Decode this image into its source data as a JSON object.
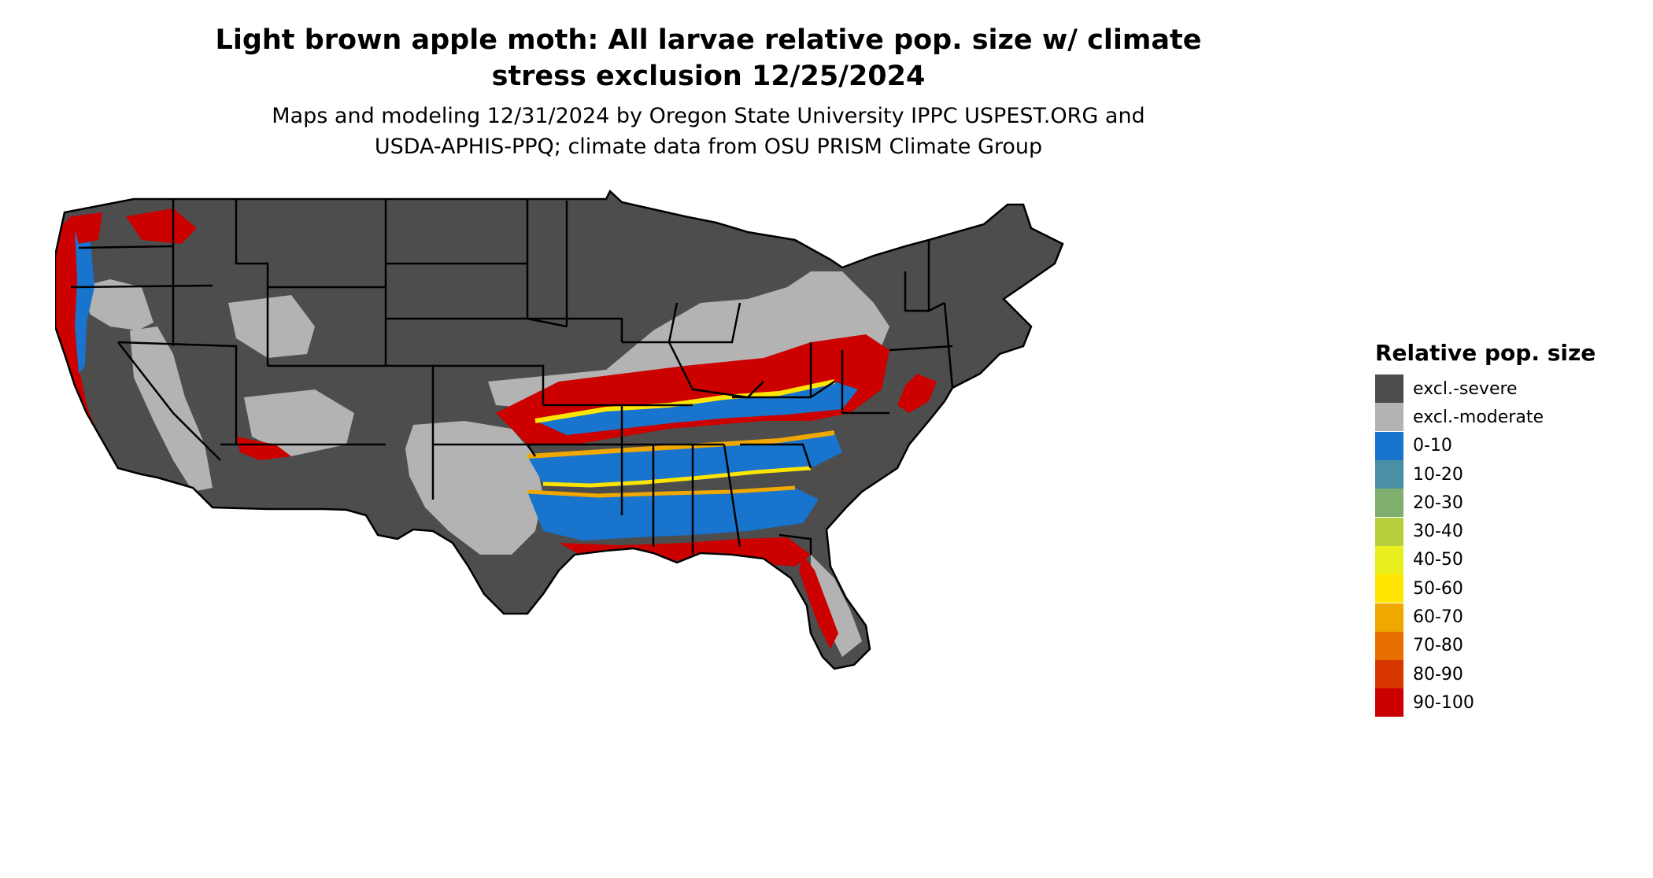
{
  "title_line1": "Light brown apple moth: All larvae relative pop. size w/ climate",
  "title_line2": "stress exclusion 12/25/2024",
  "subtitle_line1": "Maps and modeling 12/31/2024 by Oregon State University IPPC USPEST.ORG and",
  "subtitle_line2": "USDA-APHIS-PPQ; climate data from OSU PRISM Climate Group",
  "legend": {
    "title": "Relative pop. size",
    "items": [
      {
        "label": "excl.-severe",
        "color": "#4d4d4d"
      },
      {
        "label": "excl.-moderate",
        "color": "#b3b3b3"
      },
      {
        "label": "0-10",
        "color": "#1874cd"
      },
      {
        "label": "10-20",
        "color": "#4a90a4"
      },
      {
        "label": "20-30",
        "color": "#7fae6e"
      },
      {
        "label": "30-40",
        "color": "#b7d13e"
      },
      {
        "label": "40-50",
        "color": "#e8ef1c"
      },
      {
        "label": "50-60",
        "color": "#ffe600"
      },
      {
        "label": "60-70",
        "color": "#f0a800"
      },
      {
        "label": "70-80",
        "color": "#e87000"
      },
      {
        "label": "80-90",
        "color": "#d83800"
      },
      {
        "label": "90-100",
        "color": "#cd0000"
      }
    ]
  }
}
